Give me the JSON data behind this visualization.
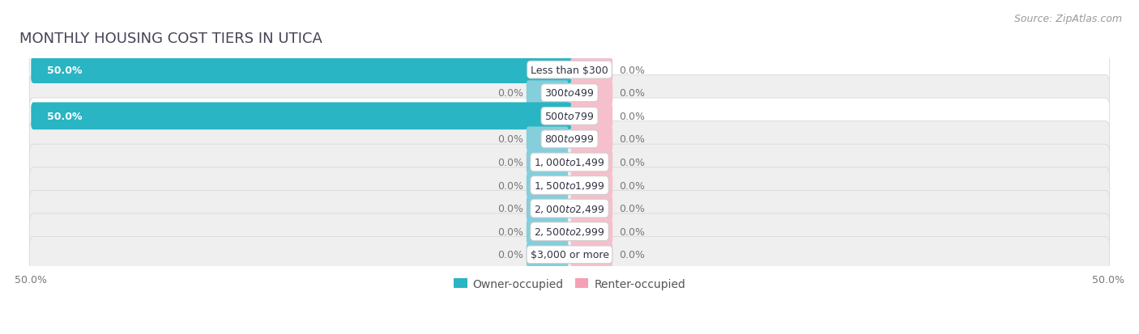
{
  "title": "Monthly Housing Cost Tiers in Utica",
  "source": "Source: ZipAtlas.com",
  "categories": [
    "Less than $300",
    "$300 to $499",
    "$500 to $799",
    "$800 to $999",
    "$1,000 to $1,499",
    "$1,500 to $1,999",
    "$2,000 to $2,499",
    "$2,500 to $2,999",
    "$3,000 or more"
  ],
  "owner_values": [
    50.0,
    0.0,
    50.0,
    0.0,
    0.0,
    0.0,
    0.0,
    0.0,
    0.0
  ],
  "renter_values": [
    0.0,
    0.0,
    0.0,
    0.0,
    0.0,
    0.0,
    0.0,
    0.0,
    0.0
  ],
  "owner_color": "#29B5C3",
  "renter_color": "#F5A0B5",
  "owner_zero_color": "#85CEDB",
  "renter_zero_color": "#F5C0CC",
  "row_bg_colors": [
    "#FFFFFF",
    "#EFEFEF",
    "#FFFFFF",
    "#EFEFEF",
    "#EFEFEF",
    "#EFEFEF",
    "#EFEFEF",
    "#EFEFEF",
    "#EFEFEF"
  ],
  "row_border_color": "#D8D8D8",
  "text_color_on_bar": "#FFFFFF",
  "text_color_outside": "#777777",
  "xlim_left": -50,
  "xlim_right": 50,
  "zero_stub": 3.5,
  "title_fontsize": 13,
  "source_fontsize": 9,
  "bar_label_fontsize": 9,
  "category_fontsize": 9,
  "legend_fontsize": 10,
  "axis_label_fontsize": 9
}
